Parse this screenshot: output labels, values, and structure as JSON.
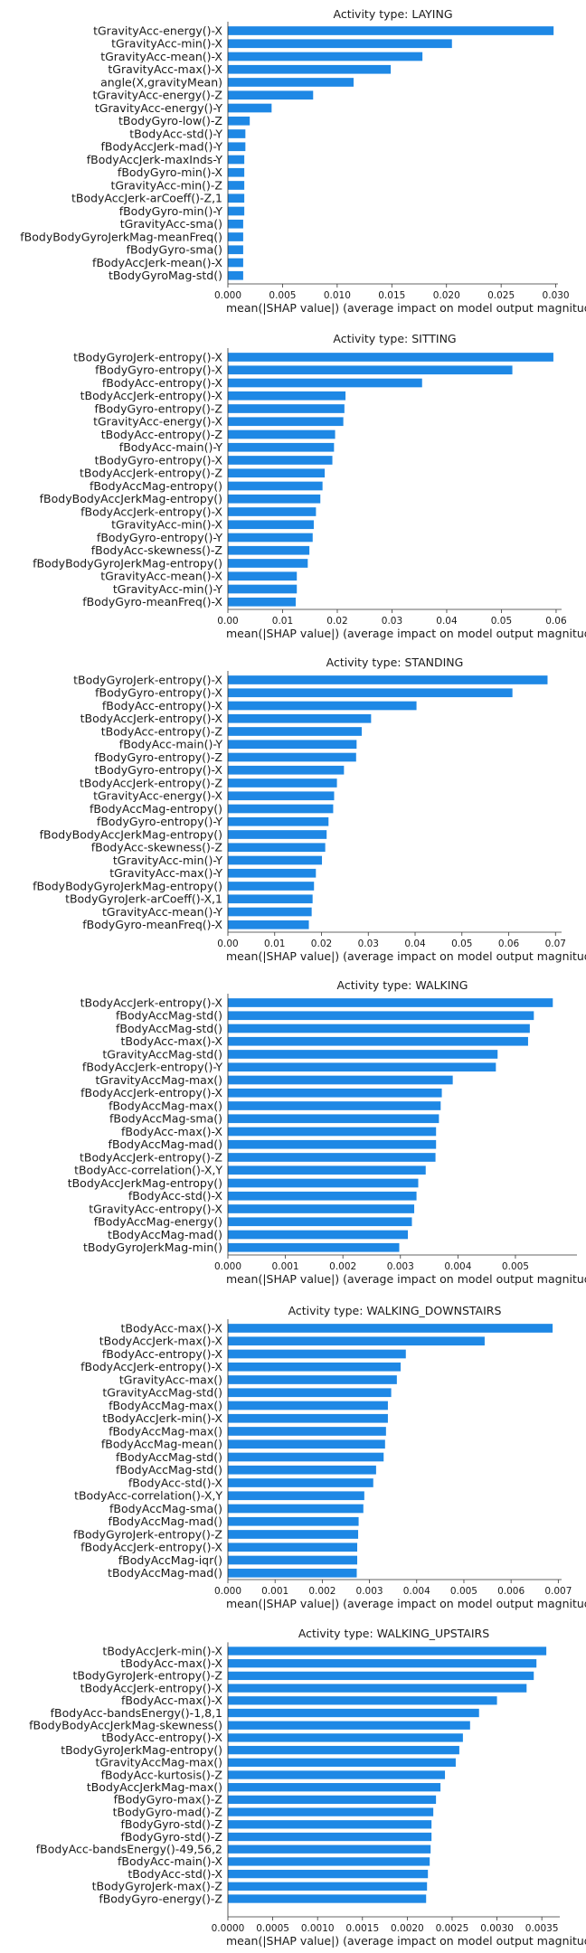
{
  "chart_data": [
    {
      "type": "bar",
      "title": "Activity type: LAYING",
      "xlabel": "mean(|SHAP value|) (average impact on model output magnitud",
      "xlim": [
        0,
        0.0302
      ],
      "xticks": [
        0.0,
        0.005,
        0.01,
        0.015,
        0.02,
        0.025,
        0.03
      ],
      "xtick_labels": [
        "0.000",
        "0.005",
        "0.010",
        "0.015",
        "0.020",
        "0.025",
        "0.030"
      ],
      "bar_color": "#1e88e5",
      "categories": [
        "tGravityAcc-energy()-X",
        "tGravityAcc-min()-X",
        "tGravityAcc-mean()-X",
        "tGravityAcc-max()-X",
        "angle(X,gravityMean)",
        "tGravityAcc-energy()-Z",
        "tGravityAcc-energy()-Y",
        "tBodyGyro-low()-Z",
        "tBodyAcc-std()-Y",
        "fBodyAccJerk-mad()-Y",
        "fBodyAccJerk-maxInds-Y",
        "fBodyGyro-min()-X",
        "tGravityAcc-min()-Z",
        "tBodyAccJerk-arCoeff()-Z,1",
        "fBodyGyro-min()-Y",
        "tGravityAcc-sma()",
        "fBodyBodyGyroJerkMag-meanFreq()",
        "fBodyGyro-sma()",
        "fBodyAccJerk-mean()-X",
        "tBodyGyroMag-std()"
      ],
      "values": [
        0.0298,
        0.0205,
        0.0178,
        0.0149,
        0.0115,
        0.0078,
        0.004,
        0.002,
        0.0016,
        0.0016,
        0.0015,
        0.0015,
        0.0015,
        0.0015,
        0.0015,
        0.0014,
        0.0014,
        0.0014,
        0.0014,
        0.0014
      ]
    },
    {
      "type": "bar",
      "title": "Activity type: SITTING",
      "xlabel": "mean(|SHAP value|) (average impact on model output magnitud",
      "xlim": [
        0,
        0.061
      ],
      "xticks": [
        0.0,
        0.01,
        0.02,
        0.03,
        0.04,
        0.05,
        0.06
      ],
      "xtick_labels": [
        "0.00",
        "0.01",
        "0.02",
        "0.03",
        "0.04",
        "0.05",
        "0.06"
      ],
      "bar_color": "#1e88e5",
      "categories": [
        "tBodyGyroJerk-entropy()-X",
        "fBodyGyro-entropy()-X",
        "fBodyAcc-entropy()-X",
        "tBodyAccJerk-entropy()-X",
        "fBodyGyro-entropy()-Z",
        "tGravityAcc-energy()-X",
        "tBodyAcc-entropy()-Z",
        "fBodyAcc-main()-Y",
        "tBodyGyro-entropy()-X",
        "tBodyAccJerk-entropy()-Z",
        "fBodyAccMag-entropy()",
        "fBodyBodyAccJerkMag-entropy()",
        "fBodyAccJerk-entropy()-X",
        "tGravityAcc-min()-X",
        "fBodyGyro-entropy()-Y",
        "fBodyAcc-skewness()-Z",
        "fBodyBodyGyroJerkMag-entropy()",
        "tGravityAcc-mean()-X",
        "tGravityAcc-min()-Y",
        "fBodyGyro-meanFreq()-X"
      ],
      "values": [
        0.0595,
        0.052,
        0.0355,
        0.0215,
        0.0213,
        0.0211,
        0.0196,
        0.0194,
        0.0191,
        0.0177,
        0.0173,
        0.0169,
        0.0161,
        0.0157,
        0.0155,
        0.0149,
        0.0146,
        0.0126,
        0.0126,
        0.0124
      ]
    },
    {
      "type": "bar",
      "title": "Activity type: STANDING",
      "xlabel": "mean(|SHAP value|) (average impact on model output magnitud",
      "xlim": [
        0,
        0.0713
      ],
      "xticks": [
        0.0,
        0.01,
        0.02,
        0.03,
        0.04,
        0.05,
        0.06,
        0.07
      ],
      "xtick_labels": [
        "0.00",
        "0.01",
        "0.02",
        "0.03",
        "0.04",
        "0.05",
        "0.06",
        "0.07"
      ],
      "bar_color": "#1e88e5",
      "categories": [
        "tBodyGyroJerk-entropy()-X",
        "fBodyGyro-entropy()-X",
        "fBodyAcc-entropy()-X",
        "tBodyAccJerk-entropy()-X",
        "tBodyAcc-entropy()-Z",
        "fBodyAcc-main()-Y",
        "fBodyGyro-entropy()-Z",
        "tBodyGyro-entropy()-X",
        "tBodyAccJerk-entropy()-Z",
        "tGravityAcc-energy()-X",
        "fBodyAccMag-entropy()",
        "fBodyGyro-entropy()-Y",
        "fBodyBodyAccJerkMag-entropy()",
        "fBodyAcc-skewness()-Z",
        "tGravityAcc-min()-Y",
        "tGravityAcc-max()-Y",
        "fBodyBodyGyroJerkMag-entropy()",
        "tBodyGyroJerk-arCoeff()-X,1",
        "tGravityAcc-mean()-Y",
        "fBodyGyro-meanFreq()-X"
      ],
      "values": [
        0.0683,
        0.0608,
        0.0403,
        0.0306,
        0.0286,
        0.0275,
        0.0274,
        0.0248,
        0.0233,
        0.0227,
        0.0225,
        0.0215,
        0.0211,
        0.0208,
        0.0201,
        0.0188,
        0.0184,
        0.0181,
        0.0179,
        0.0173
      ]
    },
    {
      "type": "bar",
      "title": "Activity type: WALKING",
      "xlabel": "mean(|SHAP value|) (average impact on model output magnitud",
      "xlim": [
        0,
        0.00607
      ],
      "xticks": [
        0.0,
        0.001,
        0.002,
        0.003,
        0.004,
        0.005
      ],
      "xtick_labels": [
        "0.000",
        "0.001",
        "0.002",
        "0.003",
        "0.004",
        "0.005"
      ],
      "bar_color": "#1e88e5",
      "categories": [
        "tBodyAccJerk-entropy()-X",
        "fBodyAccMag-std()",
        "fBodyAccMag-std()",
        "tBodyAcc-max()-X",
        "tGravityAccMag-std()",
        "fBodyAccJerk-entropy()-Y",
        "tGravityAccMag-max()",
        "fBodyAccJerk-entropy()-X",
        "fBodyAccMag-max()",
        "fBodyAccMag-sma()",
        "fBodyAcc-max()-X",
        "fBodyAccMag-mad()",
        "tBodyAccJerk-entropy()-Z",
        "tBodyAcc-correlation()-X,Y",
        "tBodyAccJerkMag-entropy()",
        "fBodyAcc-std()-X",
        "tGravityAcc-entropy()-X",
        "fBodyAccMag-energy()",
        "tBodyAccMag-mad()",
        "tBodyGyroJerkMag-min()"
      ],
      "values": [
        0.00565,
        0.00532,
        0.00525,
        0.00522,
        0.00469,
        0.00466,
        0.00391,
        0.00372,
        0.0037,
        0.00367,
        0.00362,
        0.00362,
        0.00361,
        0.00344,
        0.00331,
        0.00328,
        0.00324,
        0.0032,
        0.00313,
        0.00298
      ]
    },
    {
      "type": "bar",
      "title": "Activity type: WALKING_DOWNSTAIRS",
      "xlabel": "mean(|SHAP value|) (average impact on model output magnitud",
      "xlim": [
        0,
        0.00707
      ],
      "xticks": [
        0.0,
        0.001,
        0.002,
        0.003,
        0.004,
        0.005,
        0.006,
        0.007
      ],
      "xtick_labels": [
        "0.000",
        "0.001",
        "0.002",
        "0.003",
        "0.004",
        "0.005",
        "0.006",
        "0.007"
      ],
      "bar_color": "#1e88e5",
      "categories": [
        "tBodyAcc-max()-X",
        "tBodyAccJerk-max()-X",
        "fBodyAcc-entropy()-X",
        "fBodyAccJerk-entropy()-X",
        "tGravityAcc-max()",
        "tGravityAccMag-std()",
        "fBodyAccMag-max()",
        "tBodyAccJerk-min()-X",
        "fBodyAccMag-max()",
        "fBodyAccMag-mean()",
        "fBodyAccMag-std()",
        "fBodyAccMag-std()",
        "fBodyAcc-std()-X",
        "tBodyAcc-correlation()-X,Y",
        "fBodyAccMag-sma()",
        "fBodyAccMag-mad()",
        "fBodyGyroJerk-entropy()-Z",
        "fBodyAccJerk-entropy()-X",
        "fBodyAccMag-iqr()",
        "tBodyAccMag-mad()"
      ],
      "values": [
        0.00688,
        0.00544,
        0.00377,
        0.00366,
        0.00358,
        0.00346,
        0.00339,
        0.00339,
        0.00335,
        0.00333,
        0.0033,
        0.00314,
        0.00308,
        0.00289,
        0.00287,
        0.00277,
        0.00276,
        0.00274,
        0.00274,
        0.00273
      ]
    },
    {
      "type": "bar",
      "title": "Activity type: WALKING_UPSTAIRS",
      "xlabel": "mean(|SHAP value|) (average impact on model output magnitud",
      "xlim": [
        0,
        0.0037
      ],
      "xticks": [
        0.0,
        0.0005,
        0.001,
        0.0015,
        0.002,
        0.0025,
        0.003,
        0.0035
      ],
      "xtick_labels": [
        "0.0000",
        "0.0005",
        "0.0010",
        "0.0015",
        "0.0020",
        "0.0025",
        "0.0030",
        "0.0035"
      ],
      "bar_color": "#1e88e5",
      "categories": [
        "tBodyAccJerk-min()-X",
        "tBodyAcc-max()-X",
        "tBodyGyroJerk-entropy()-Z",
        "tBodyAccJerk-entropy()-X",
        "fBodyAcc-max()-X",
        "fBodyAcc-bandsEnergy()-1,8,1",
        "fBodyBodyAccJerkMag-skewness()",
        "tBodyAcc-entropy()-X",
        "tBodyGyroJerkMag-entropy()",
        "tGravityAccMag-max()",
        "fBodyAcc-kurtosis()-Z",
        "tBodyAccJerkMag-max()",
        "fBodyGyro-max()-Z",
        "tBodyGyro-mad()-Z",
        "fBodyGyro-std()-Z",
        "fBodyGyro-std()-Z",
        "fBodyAcc-bandsEnergy()-49,56,2",
        "fBodyAcc-main()-X",
        "tBodyAcc-std()-X",
        "tBodyGyroJerk-max()-Z",
        "fBodyGyro-energy()-Z"
      ],
      "values": [
        0.00355,
        0.00344,
        0.00341,
        0.00333,
        0.003,
        0.0028,
        0.0027,
        0.00262,
        0.00258,
        0.00254,
        0.00242,
        0.00237,
        0.00232,
        0.00229,
        0.00227,
        0.00227,
        0.00226,
        0.00225,
        0.00223,
        0.00222,
        0.00221
      ]
    }
  ]
}
